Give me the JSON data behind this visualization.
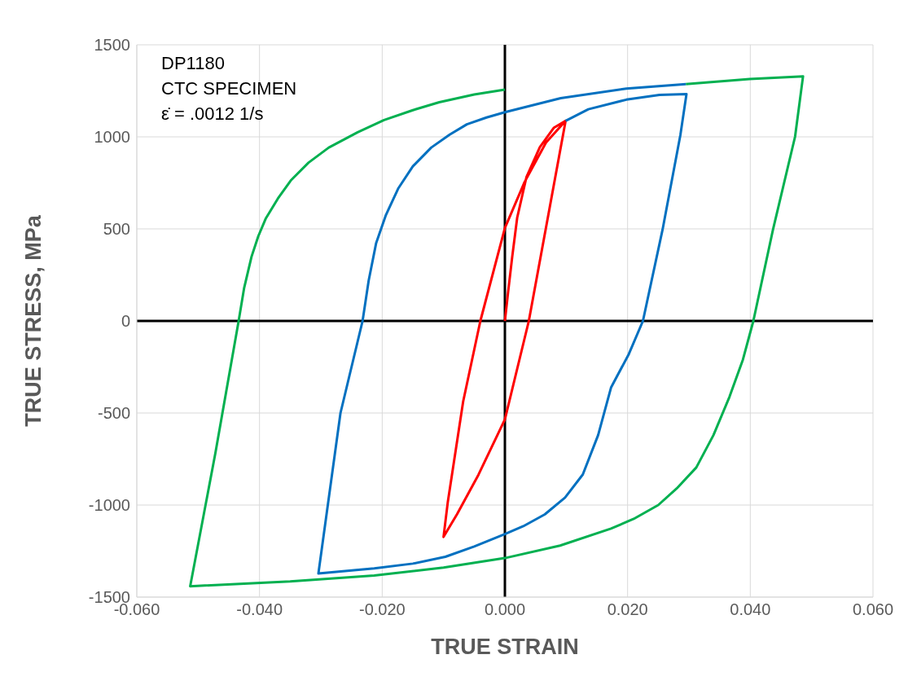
{
  "chart_data": {
    "type": "line",
    "xlabel": "TRUE STRAIN",
    "ylabel": "TRUE STRESS, MPa",
    "annotations": [
      "DP1180",
      "CTC SPECIMEN",
      "ε̇ = .0012 1/s"
    ],
    "xlim": [
      -0.06,
      0.06
    ],
    "xticks": [
      {
        "value": -0.06,
        "label": "-0.060"
      },
      {
        "value": -0.04,
        "label": "-0.040"
      },
      {
        "value": -0.02,
        "label": "-0.020"
      },
      {
        "value": 0,
        "label": "0.000"
      },
      {
        "value": 0.02,
        "label": "0.020"
      },
      {
        "value": 0.04,
        "label": "0.040"
      },
      {
        "value": 0.06,
        "label": "0.060"
      }
    ],
    "ylim": [
      -1500,
      1500
    ],
    "yticks": [
      -1500,
      -1000,
      -500,
      0,
      500,
      1000,
      1500
    ],
    "grid": true,
    "legend": false,
    "marker": "none",
    "line_style": "solid",
    "series": [
      {
        "color": "#ff0000",
        "x": [
          0,
          0.0005,
          0.0012,
          0.002,
          0.0035,
          0.0057,
          0.008,
          0.0099,
          0.0039,
          0,
          -0.0043,
          -0.0078,
          -0.01,
          -0.0093,
          -0.0068,
          -0.004,
          0,
          0.0032,
          0.0067,
          0.0099
        ],
        "values": [
          0,
          150,
          350,
          560,
          780,
          944,
          1050,
          1087,
          0,
          -535,
          -835,
          -1050,
          -1173,
          -982,
          -437,
          0,
          505,
          754,
          969,
          1087
        ]
      },
      {
        "color": "#0070c0",
        "x": [
          0.0099,
          0.0136,
          0.0198,
          0.0252,
          0.0296,
          0.0286,
          0.0257,
          0.0225,
          0.0202,
          0.0173,
          0.0152,
          0.0127,
          0.0098,
          0.0065,
          0.003,
          0,
          -0.005,
          -0.0097,
          -0.015,
          -0.0213,
          -0.0304,
          -0.0268,
          -0.0232,
          -0.0222,
          -0.021,
          -0.0194,
          -0.0174,
          -0.015,
          -0.012,
          -0.009,
          -0.0062,
          -0.003,
          0,
          0.0091,
          0.0198,
          0.0295
        ],
        "values": [
          1087,
          1150,
          1202,
          1228,
          1232,
          1009,
          496,
          0,
          -180,
          -362,
          -620,
          -834,
          -960,
          -1051,
          -1115,
          -1158,
          -1225,
          -1281,
          -1318,
          -1344,
          -1372,
          -500,
          0,
          220,
          421,
          575,
          719,
          840,
          942,
          1012,
          1068,
          1105,
          1134,
          1210,
          1262,
          1287
        ]
      },
      {
        "color": "#00b050",
        "x": [
          0.0295,
          0.0399,
          0.0486,
          0.0473,
          0.0437,
          0.0405,
          0.0388,
          0.0366,
          0.034,
          0.0312,
          0.028,
          0.025,
          0.021,
          0.0173,
          0.009,
          0,
          -0.01,
          -0.0213,
          -0.035,
          -0.0513,
          -0.0472,
          -0.0434,
          -0.0425,
          -0.0413,
          -0.0402,
          -0.039,
          -0.037,
          -0.0349,
          -0.032,
          -0.0287,
          -0.024,
          -0.0197,
          -0.015,
          -0.0107,
          -0.005,
          0
        ],
        "values": [
          1287,
          1314,
          1329,
          1001,
          496,
          0,
          -210,
          -413,
          -620,
          -796,
          -910,
          -1000,
          -1075,
          -1128,
          -1220,
          -1288,
          -1340,
          -1383,
          -1415,
          -1441,
          -719,
          0,
          180,
          349,
          460,
          555,
          665,
          763,
          860,
          942,
          1025,
          1091,
          1145,
          1188,
          1230,
          1257
        ]
      }
    ]
  }
}
